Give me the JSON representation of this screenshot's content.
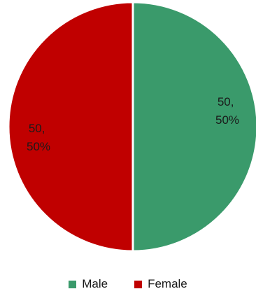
{
  "chart_data": {
    "type": "pie",
    "categories": [
      "Male",
      "Female"
    ],
    "values": [
      50,
      50
    ],
    "percentages": [
      "50%",
      "50%"
    ],
    "data_labels": [
      {
        "line1": "50,",
        "line2": "50%"
      },
      {
        "line1": "50,",
        "line2": "50%"
      }
    ],
    "colors": [
      "#3a9a6b",
      "#c00000"
    ],
    "legend": {
      "placement": "bottom"
    }
  }
}
